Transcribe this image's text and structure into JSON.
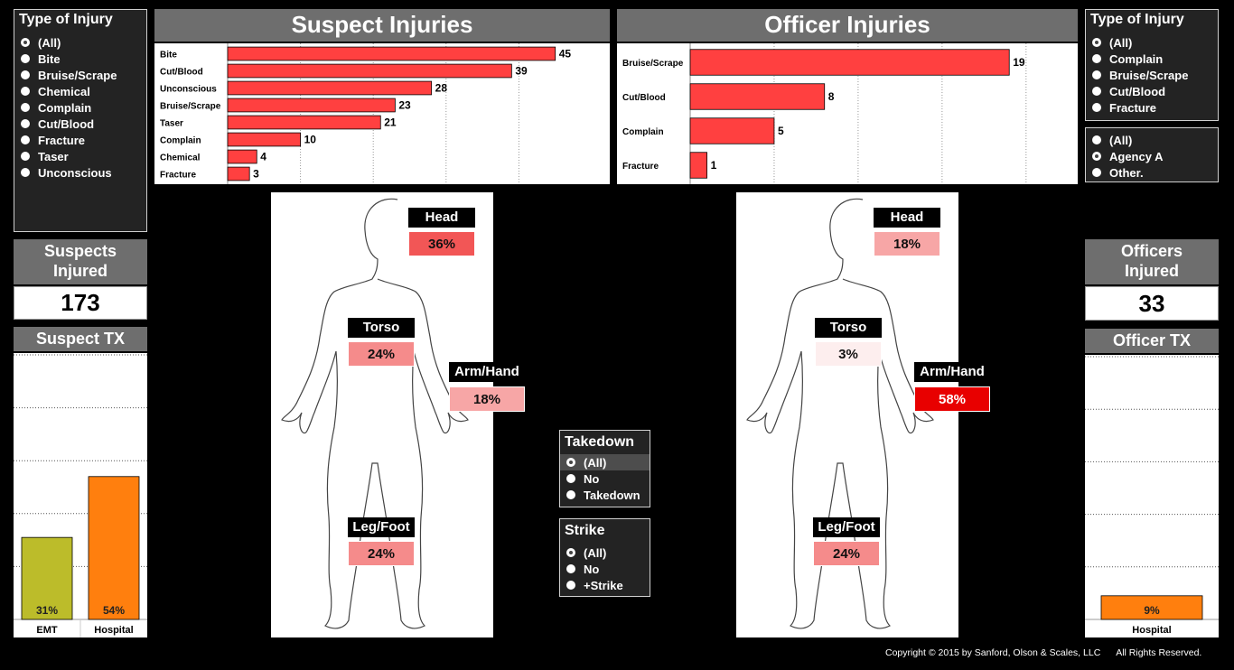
{
  "left_filter": {
    "title": "Type of Injury",
    "options": [
      "(All)",
      "Bite",
      "Bruise/Scrape",
      "Chemical",
      "Complain",
      "Cut/Blood",
      "Fracture",
      "Taser",
      "Unconscious"
    ],
    "selected": "(All)"
  },
  "right_filter": {
    "title": "Type of Injury",
    "options": [
      "(All)",
      "Complain",
      "Bruise/Scrape",
      "Cut/Blood",
      "Fracture"
    ],
    "selected": "(All)"
  },
  "agency_filter": {
    "options": [
      "(All)",
      "Agency A",
      "Other."
    ],
    "selected": "Agency A"
  },
  "takedown_filter": {
    "title": "Takedown",
    "options": [
      "(All)",
      "No",
      "Takedown"
    ],
    "selected": "(All)"
  },
  "strike_filter": {
    "title": "Strike",
    "options": [
      "(All)",
      "No",
      "+Strike"
    ],
    "selected": "(All)"
  },
  "suspect": {
    "title": "Suspect Injuries",
    "injured_label_1": "Suspects",
    "injured_label_2": "Injured",
    "injured_count": "173",
    "tx_title": "Suspect TX",
    "body": {
      "head": {
        "label": "Head",
        "pct": "36%",
        "color": "#f25656"
      },
      "torso": {
        "label": "Torso",
        "pct": "24%",
        "color": "#f58b8b"
      },
      "arm": {
        "label": "Arm/Hand",
        "pct": "18%",
        "color": "#f7a6a6"
      },
      "leg": {
        "label": "Leg/Foot",
        "pct": "24%",
        "color": "#f58b8b"
      }
    }
  },
  "officer": {
    "title": "Officer Injuries",
    "injured_label_1": "Officers",
    "injured_label_2": "Injured",
    "injured_count": "33",
    "tx_title": "Officer TX",
    "body": {
      "head": {
        "label": "Head",
        "pct": "18%",
        "color": "#f7a6a6"
      },
      "torso": {
        "label": "Torso",
        "pct": "3%",
        "color": "#fdeeee"
      },
      "arm": {
        "label": "Arm/Hand",
        "pct": "58%",
        "color": "#e80000"
      },
      "leg": {
        "label": "Leg/Foot",
        "pct": "24%",
        "color": "#f58b8b"
      }
    }
  },
  "copyright": "Copyright © 2015 by Sanford, Olson & Scales, LLC      All Rights Reserved.",
  "chart_data": [
    {
      "type": "bar",
      "orientation": "horizontal",
      "title": "Suspect Injuries",
      "categories": [
        "Bite",
        "Cut/Blood",
        "Unconscious",
        "Bruise/Scrape",
        "Taser",
        "Complain",
        "Chemical",
        "Fracture"
      ],
      "values": [
        45,
        39,
        28,
        23,
        21,
        10,
        4,
        3
      ],
      "xlim": [
        0,
        50
      ],
      "grid": true,
      "color": "#ff4040"
    },
    {
      "type": "bar",
      "orientation": "horizontal",
      "title": "Officer Injuries",
      "categories": [
        "Bruise/Scrape",
        "Cut/Blood",
        "Complain",
        "Fracture"
      ],
      "values": [
        19,
        8,
        5,
        1
      ],
      "xlim": [
        0,
        22
      ],
      "grid": true,
      "color": "#ff4040"
    },
    {
      "type": "bar",
      "title": "Suspect TX",
      "categories": [
        "EMT",
        "Hospital"
      ],
      "values": [
        31,
        54
      ],
      "labels": [
        "31%",
        "54%"
      ],
      "colors": [
        "#bcbc2a",
        "#ff7f0e"
      ],
      "ylim": [
        0,
        100
      ],
      "grid": true
    },
    {
      "type": "bar",
      "title": "Officer TX",
      "categories": [
        "Hospital"
      ],
      "values": [
        9
      ],
      "labels": [
        "9%"
      ],
      "colors": [
        "#ff7f0e"
      ],
      "ylim": [
        0,
        100
      ],
      "grid": true
    }
  ]
}
